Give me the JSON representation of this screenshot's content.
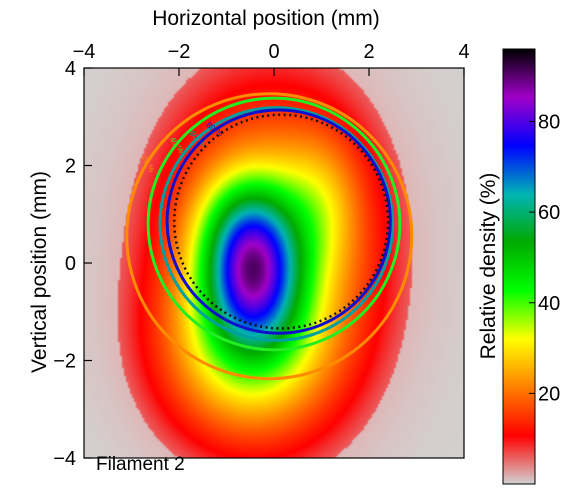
{
  "chart_data": {
    "type": "heatmap",
    "xlabel": "Horizontal position (mm)",
    "ylabel": "Vertical position (mm)",
    "xlim": [
      -4,
      4
    ],
    "ylim": [
      -4,
      4
    ],
    "xticks": [
      "−4",
      "−2",
      "0",
      "2",
      "4"
    ],
    "yticks": [
      "4",
      "2",
      "0",
      "−2",
      "−4"
    ],
    "xaxis_position": "top",
    "annotation": "Filament 2",
    "colorbar": {
      "label": "Relative density (%)",
      "ticks": [
        "20",
        "40",
        "60",
        "80"
      ],
      "range": [
        0,
        96
      ],
      "colormap": [
        "#d2d2d2",
        "#ff0000",
        "#ff7f00",
        "#ffff00",
        "#00ff00",
        "#00aa00",
        "#00b4b4",
        "#0000ff",
        "#a000c8",
        "#000000"
      ]
    },
    "peak": {
      "x": -0.5,
      "y": -0.2,
      "value": 92
    },
    "density_blobs": [
      {
        "x": -0.1,
        "y": 0.3,
        "sx": 1.7,
        "sy": 2.4,
        "amp": 28
      },
      {
        "x": -0.6,
        "y": -1.9,
        "sx": 1.3,
        "sy": 1.3,
        "amp": 20
      },
      {
        "x": -0.45,
        "y": -0.2,
        "sx": 0.7,
        "sy": 1.05,
        "amp": 50
      },
      {
        "x": -0.6,
        "y": 0.8,
        "sx": 0.7,
        "sy": 0.8,
        "amp": 12
      },
      {
        "x": 1.0,
        "y": 1.2,
        "sx": 0.6,
        "sy": 1.0,
        "amp": 10
      }
    ],
    "contours": [
      {
        "level": "20 %",
        "color": "#ff8c00",
        "cx": -0.1,
        "cy": 0.55,
        "r": 3.0
      },
      {
        "level": "40 %",
        "color": "#22ee22",
        "cx": 0.0,
        "cy": 0.8,
        "r": 2.65
      },
      {
        "level": "60 %",
        "color": "#00a0a0",
        "cx": 0.05,
        "cy": 0.8,
        "r": 2.45
      },
      {
        "level": "80 %",
        "color": "#1010cc",
        "cx": 0.1,
        "cy": 0.85,
        "r": 2.35
      }
    ],
    "dotted_circle": {
      "cx": 0.15,
      "cy": 0.85,
      "r": 2.25
    }
  }
}
